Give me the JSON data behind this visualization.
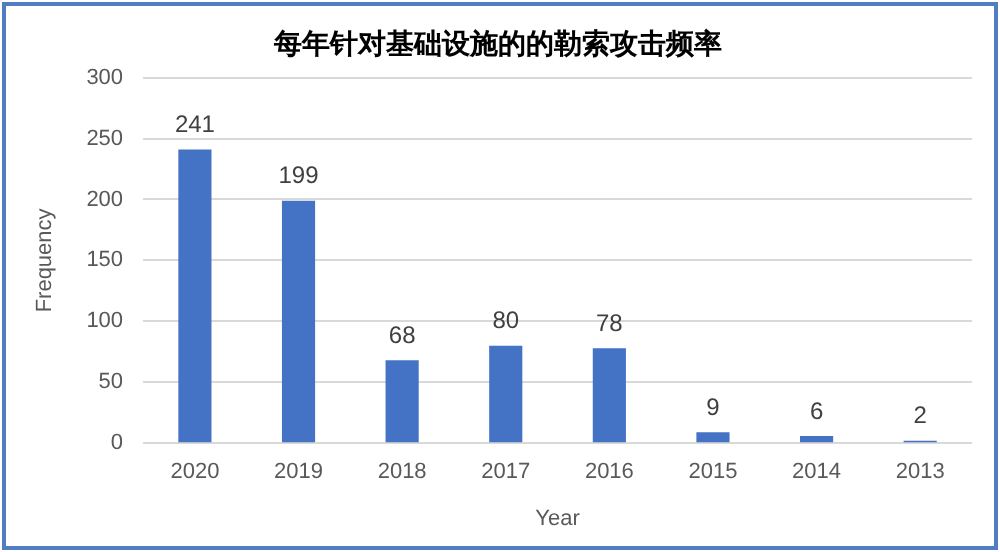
{
  "chart_data": {
    "type": "bar",
    "title": "每年针对基础设施的的勒索攻击频率",
    "xlabel": "Year",
    "ylabel": "Frequency",
    "categories": [
      "2020",
      "2019",
      "2018",
      "2017",
      "2016",
      "2015",
      "2014",
      "2013"
    ],
    "values": [
      241,
      199,
      68,
      80,
      78,
      9,
      6,
      2
    ],
    "color": "#4472c4",
    "ylim": [
      0,
      300
    ],
    "yticks": [
      0,
      50,
      100,
      150,
      200,
      250,
      300
    ],
    "grid": "y",
    "data_labels": true
  }
}
